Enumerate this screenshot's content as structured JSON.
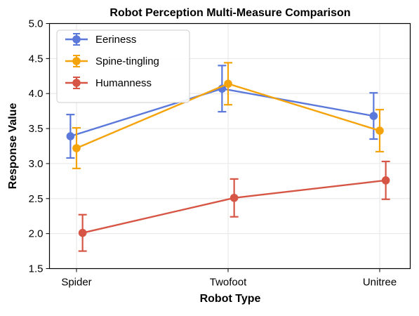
{
  "chart_data": {
    "type": "line",
    "title": "Robot Perception Multi-Measure Comparison",
    "xlabel": "Robot Type",
    "ylabel": "Response Value",
    "categories": [
      "Spider",
      "Twofoot",
      "Unitree"
    ],
    "ylim": [
      1.5,
      5.0
    ],
    "yticks": [
      "1.5",
      "2.0",
      "2.5",
      "3.0",
      "3.5",
      "4.0",
      "4.5",
      "5.0"
    ],
    "grid": true,
    "legend_position": "top-left",
    "series": [
      {
        "name": "Eeriness",
        "color": "#5b78db",
        "values": [
          3.39,
          4.07,
          3.68
        ],
        "error": [
          0.31,
          0.33,
          0.33
        ],
        "x_offset": -0.04
      },
      {
        "name": "Spine-tingling",
        "color": "#f5a30b",
        "values": [
          3.22,
          4.14,
          3.47
        ],
        "error": [
          0.29,
          0.3,
          0.3
        ],
        "x_offset": 0.0
      },
      {
        "name": "Humanness",
        "color": "#d65544",
        "values": [
          2.01,
          2.51,
          2.76
        ],
        "error": [
          0.26,
          0.27,
          0.27
        ],
        "x_offset": 0.04
      }
    ]
  }
}
